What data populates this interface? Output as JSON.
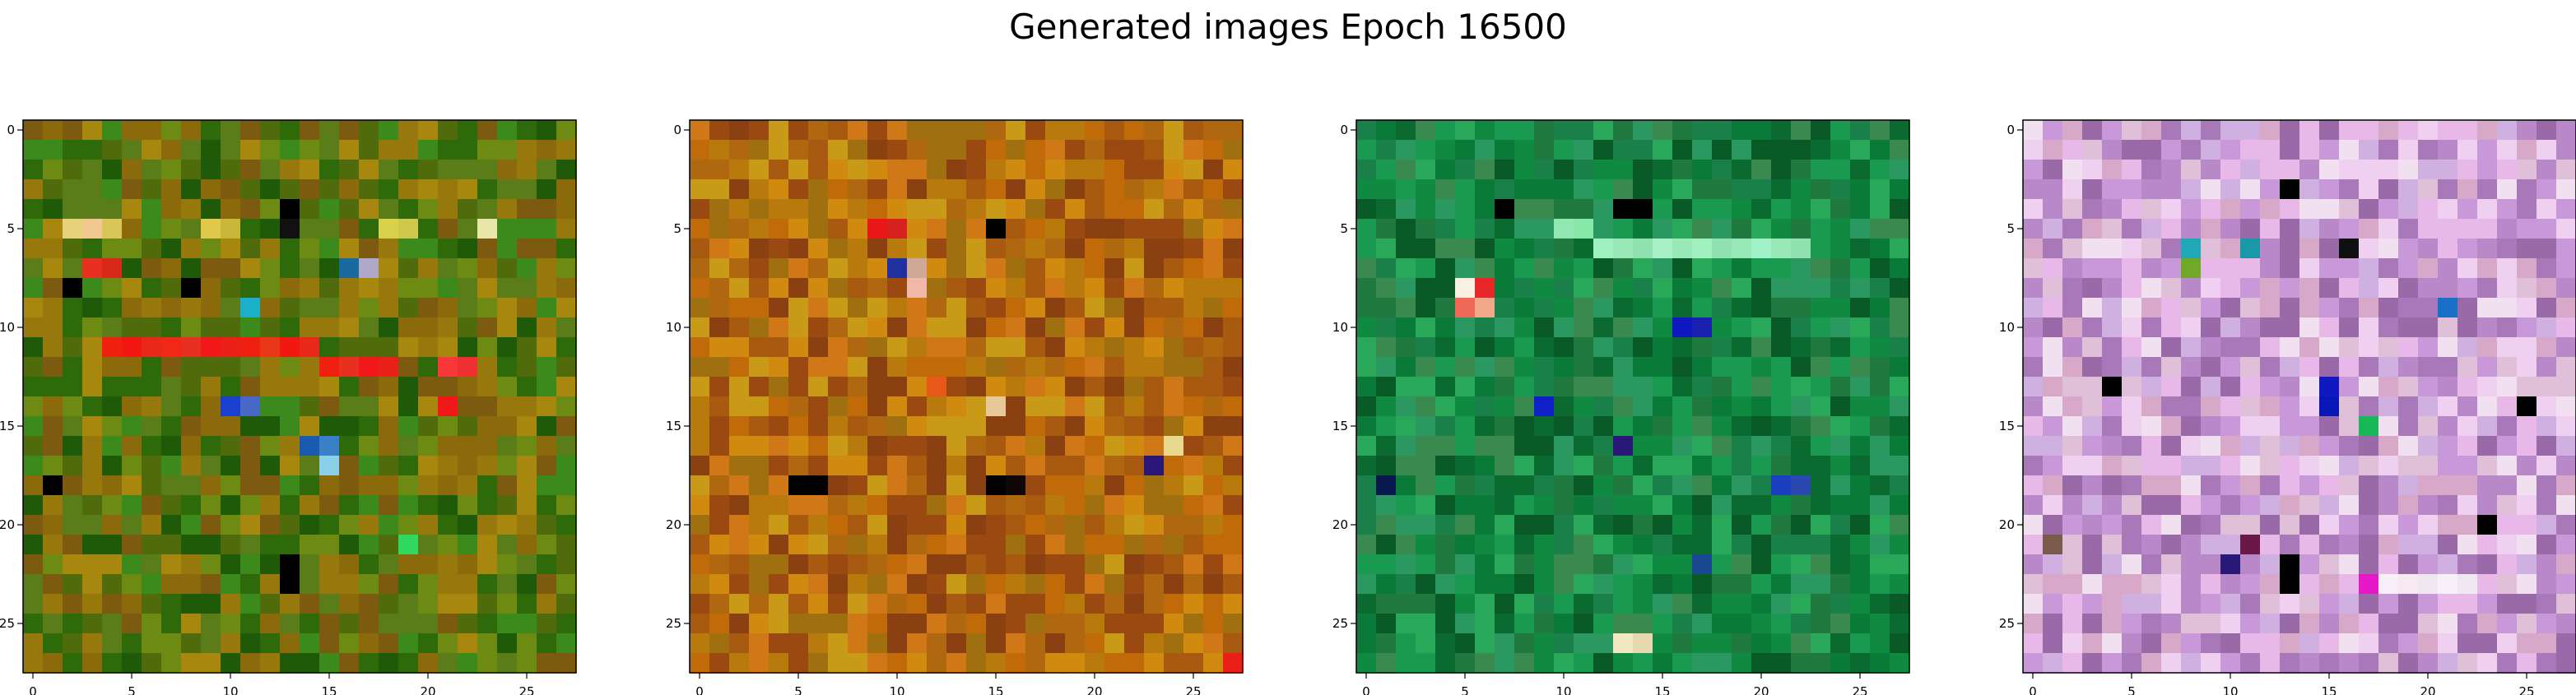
{
  "figure": {
    "title": "Generated images Epoch 16500"
  },
  "chart_data": [
    {
      "type": "heatmap",
      "title": "",
      "grid_size": [
        28,
        28
      ],
      "xlim": [
        -0.5,
        27.5
      ],
      "ylim": [
        27.5,
        -0.5
      ],
      "xticks": [
        0,
        5,
        10,
        15,
        20,
        25
      ],
      "yticks": [
        0,
        5,
        10,
        15,
        20,
        25
      ],
      "grid": false,
      "palette": [
        "#4f6b0c",
        "#6d8a12",
        "#8a6a0a",
        "#a8870e",
        "#2f6a0a",
        "#1f5a08",
        "#5a7d1a",
        "#7c5a10",
        "#3c8a1c",
        "#96780c"
      ],
      "highlights": [
        {
          "x": 2,
          "y": 5,
          "color": "#e6d27a"
        },
        {
          "x": 3,
          "y": 5,
          "color": "#f0c890"
        },
        {
          "x": 4,
          "y": 5,
          "color": "#d9c65a"
        },
        {
          "x": 9,
          "y": 5,
          "color": "#e0c84a"
        },
        {
          "x": 10,
          "y": 5,
          "color": "#c8b73a"
        },
        {
          "x": 13,
          "y": 4,
          "color": "#000000"
        },
        {
          "x": 13,
          "y": 5,
          "color": "#111111"
        },
        {
          "x": 18,
          "y": 5,
          "color": "#d8d24a"
        },
        {
          "x": 19,
          "y": 5,
          "color": "#cfc84a"
        },
        {
          "x": 23,
          "y": 5,
          "color": "#e8e6a8"
        },
        {
          "x": 16,
          "y": 7,
          "color": "#1a6aa0"
        },
        {
          "x": 17,
          "y": 7,
          "color": "#b0a8c8"
        },
        {
          "x": 11,
          "y": 9,
          "color": "#1ab0c8"
        },
        {
          "x": 3,
          "y": 7,
          "color": "#e83020"
        },
        {
          "x": 4,
          "y": 7,
          "color": "#d82818"
        },
        {
          "x": 4,
          "y": 11,
          "color": "#f02010"
        },
        {
          "x": 5,
          "y": 11,
          "color": "#f01810"
        },
        {
          "x": 6,
          "y": 11,
          "color": "#e82818"
        },
        {
          "x": 7,
          "y": 11,
          "color": "#f02818"
        },
        {
          "x": 8,
          "y": 11,
          "color": "#e83020"
        },
        {
          "x": 9,
          "y": 11,
          "color": "#f01818"
        },
        {
          "x": 10,
          "y": 11,
          "color": "#e82018"
        },
        {
          "x": 11,
          "y": 11,
          "color": "#f02010"
        },
        {
          "x": 12,
          "y": 11,
          "color": "#e83818"
        },
        {
          "x": 13,
          "y": 11,
          "color": "#f01810"
        },
        {
          "x": 14,
          "y": 11,
          "color": "#e82818"
        },
        {
          "x": 15,
          "y": 12,
          "color": "#f02010"
        },
        {
          "x": 16,
          "y": 12,
          "color": "#e83020"
        },
        {
          "x": 17,
          "y": 12,
          "color": "#f01818"
        },
        {
          "x": 18,
          "y": 12,
          "color": "#e82018"
        },
        {
          "x": 21,
          "y": 12,
          "color": "#f83838"
        },
        {
          "x": 22,
          "y": 12,
          "color": "#f03030"
        },
        {
          "x": 21,
          "y": 14,
          "color": "#f01818"
        },
        {
          "x": 10,
          "y": 14,
          "color": "#1a40d0"
        },
        {
          "x": 11,
          "y": 14,
          "color": "#4868c8"
        },
        {
          "x": 14,
          "y": 16,
          "color": "#1a5ab0"
        },
        {
          "x": 15,
          "y": 17,
          "color": "#8ad0e8"
        },
        {
          "x": 15,
          "y": 16,
          "color": "#3a80c8"
        },
        {
          "x": 13,
          "y": 22,
          "color": "#000000"
        },
        {
          "x": 13,
          "y": 23,
          "color": "#000000"
        },
        {
          "x": 19,
          "y": 21,
          "color": "#30d860"
        },
        {
          "x": 1,
          "y": 18,
          "color": "#000000"
        },
        {
          "x": 8,
          "y": 8,
          "color": "#000000"
        },
        {
          "x": 2,
          "y": 8,
          "color": "#000000"
        }
      ]
    },
    {
      "type": "heatmap",
      "title": "",
      "grid_size": [
        28,
        28
      ],
      "xlim": [
        -0.5,
        27.5
      ],
      "ylim": [
        27.5,
        -0.5
      ],
      "xticks": [
        0,
        5,
        10,
        15,
        20,
        25
      ],
      "yticks": [
        0,
        5,
        10,
        15,
        20,
        25
      ],
      "grid": false,
      "palette": [
        "#c06a0a",
        "#a85a10",
        "#d08a10",
        "#b87a0c",
        "#9a4a10",
        "#c89a18",
        "#b06810",
        "#d07818",
        "#a07010",
        "#8a4010"
      ],
      "highlights": [
        {
          "x": 9,
          "y": 5,
          "color": "#e81818"
        },
        {
          "x": 10,
          "y": 5,
          "color": "#d82020"
        },
        {
          "x": 15,
          "y": 5,
          "color": "#000000"
        },
        {
          "x": 10,
          "y": 7,
          "color": "#2030a0"
        },
        {
          "x": 11,
          "y": 7,
          "color": "#d0a898"
        },
        {
          "x": 11,
          "y": 8,
          "color": "#f0b8a8"
        },
        {
          "x": 5,
          "y": 18,
          "color": "#000000"
        },
        {
          "x": 6,
          "y": 18,
          "color": "#000000"
        },
        {
          "x": 15,
          "y": 18,
          "color": "#000000"
        },
        {
          "x": 16,
          "y": 18,
          "color": "#100808"
        },
        {
          "x": 23,
          "y": 17,
          "color": "#2a1878"
        },
        {
          "x": 24,
          "y": 16,
          "color": "#e8d890"
        },
        {
          "x": 27,
          "y": 27,
          "color": "#e82018"
        },
        {
          "x": 15,
          "y": 14,
          "color": "#e8c898"
        },
        {
          "x": 12,
          "y": 13,
          "color": "#e85818"
        }
      ]
    },
    {
      "type": "heatmap",
      "title": "",
      "grid_size": [
        28,
        28
      ],
      "xlim": [
        -0.5,
        27.5
      ],
      "ylim": [
        27.5,
        -0.5
      ],
      "xticks": [
        0,
        5,
        10,
        15,
        20,
        25
      ],
      "yticks": [
        0,
        5,
        10,
        15,
        20,
        25
      ],
      "grid": false,
      "palette": [
        "#108a40",
        "#0a6a30",
        "#1a9a50",
        "#207a40",
        "#0a5a28",
        "#28a858",
        "#3a8a50",
        "#0a7a38",
        "#188048",
        "#2a9860"
      ],
      "highlights": [
        {
          "x": 5,
          "y": 8,
          "color": "#f8f0e0"
        },
        {
          "x": 6,
          "y": 8,
          "color": "#e82828"
        },
        {
          "x": 5,
          "y": 9,
          "color": "#f06858"
        },
        {
          "x": 6,
          "y": 9,
          "color": "#f0a888"
        },
        {
          "x": 13,
          "y": 4,
          "color": "#000000"
        },
        {
          "x": 14,
          "y": 4,
          "color": "#000000"
        },
        {
          "x": 16,
          "y": 10,
          "color": "#1018c0"
        },
        {
          "x": 17,
          "y": 10,
          "color": "#1a20b0"
        },
        {
          "x": 9,
          "y": 14,
          "color": "#1020c8"
        },
        {
          "x": 13,
          "y": 16,
          "color": "#2a1878"
        },
        {
          "x": 21,
          "y": 18,
          "color": "#1a40c0"
        },
        {
          "x": 22,
          "y": 18,
          "color": "#2a48b0"
        },
        {
          "x": 17,
          "y": 22,
          "color": "#1a4890"
        },
        {
          "x": 13,
          "y": 26,
          "color": "#f0e8c0"
        },
        {
          "x": 14,
          "y": 26,
          "color": "#e8d8b0"
        },
        {
          "x": 1,
          "y": 18,
          "color": "#0a1850"
        },
        {
          "x": 7,
          "y": 4,
          "color": "#000000"
        },
        {
          "x": 10,
          "y": 5,
          "color": "#90e8b0"
        },
        {
          "x": 11,
          "y": 5,
          "color": "#88e8a8"
        },
        {
          "x": 12,
          "y": 6,
          "color": "#a0f0c0"
        },
        {
          "x": 13,
          "y": 6,
          "color": "#98e8b8"
        },
        {
          "x": 14,
          "y": 6,
          "color": "#90e0b0"
        },
        {
          "x": 15,
          "y": 6,
          "color": "#a8f0c8"
        },
        {
          "x": 16,
          "y": 6,
          "color": "#98e8b8"
        },
        {
          "x": 17,
          "y": 6,
          "color": "#a0f0c0"
        },
        {
          "x": 18,
          "y": 6,
          "color": "#90e0b0"
        },
        {
          "x": 19,
          "y": 6,
          "color": "#98e8b8"
        },
        {
          "x": 20,
          "y": 6,
          "color": "#a0f0c8"
        },
        {
          "x": 21,
          "y": 6,
          "color": "#98e8b8"
        },
        {
          "x": 22,
          "y": 6,
          "color": "#90e0b0"
        }
      ]
    },
    {
      "type": "heatmap",
      "title": "",
      "grid_size": [
        28,
        28
      ],
      "xlim": [
        -0.5,
        27.5
      ],
      "ylim": [
        27.5,
        -0.5
      ],
      "xticks": [
        0,
        5,
        10,
        15,
        20,
        25
      ],
      "yticks": [
        0,
        5,
        10,
        15,
        20,
        25
      ],
      "grid": false,
      "palette": [
        "#c898d8",
        "#e8b8e8",
        "#a878b8",
        "#d8a8c8",
        "#f0d0f0",
        "#b888c8",
        "#e0c0d8",
        "#9a6aa8",
        "#d0b0e0",
        "#f0e0f0"
      ],
      "highlights": [
        {
          "x": 13,
          "y": 3,
          "color": "#000000"
        },
        {
          "x": 8,
          "y": 6,
          "color": "#20a8b8"
        },
        {
          "x": 11,
          "y": 6,
          "color": "#1898a8"
        },
        {
          "x": 16,
          "y": 6,
          "color": "#101010"
        },
        {
          "x": 21,
          "y": 9,
          "color": "#1a70c8"
        },
        {
          "x": 4,
          "y": 13,
          "color": "#000000"
        },
        {
          "x": 15,
          "y": 13,
          "color": "#1018c0"
        },
        {
          "x": 15,
          "y": 14,
          "color": "#0818b8"
        },
        {
          "x": 17,
          "y": 15,
          "color": "#18b858"
        },
        {
          "x": 25,
          "y": 14,
          "color": "#000000"
        },
        {
          "x": 13,
          "y": 22,
          "color": "#000000"
        },
        {
          "x": 13,
          "y": 23,
          "color": "#000000"
        },
        {
          "x": 17,
          "y": 23,
          "color": "#e818c8"
        },
        {
          "x": 1,
          "y": 21,
          "color": "#7a5a4a"
        },
        {
          "x": 23,
          "y": 20,
          "color": "#000000"
        },
        {
          "x": 18,
          "y": 23,
          "color": "#f8f0f8"
        },
        {
          "x": 19,
          "y": 23,
          "color": "#f8e8f0"
        },
        {
          "x": 20,
          "y": 23,
          "color": "#f0e8f0"
        },
        {
          "x": 21,
          "y": 23,
          "color": "#f8f0f8"
        },
        {
          "x": 22,
          "y": 23,
          "color": "#f0e8f0"
        },
        {
          "x": 10,
          "y": 22,
          "color": "#2a1878"
        },
        {
          "x": 11,
          "y": 21,
          "color": "#6a1848"
        },
        {
          "x": 8,
          "y": 7,
          "color": "#70a828"
        }
      ]
    }
  ]
}
